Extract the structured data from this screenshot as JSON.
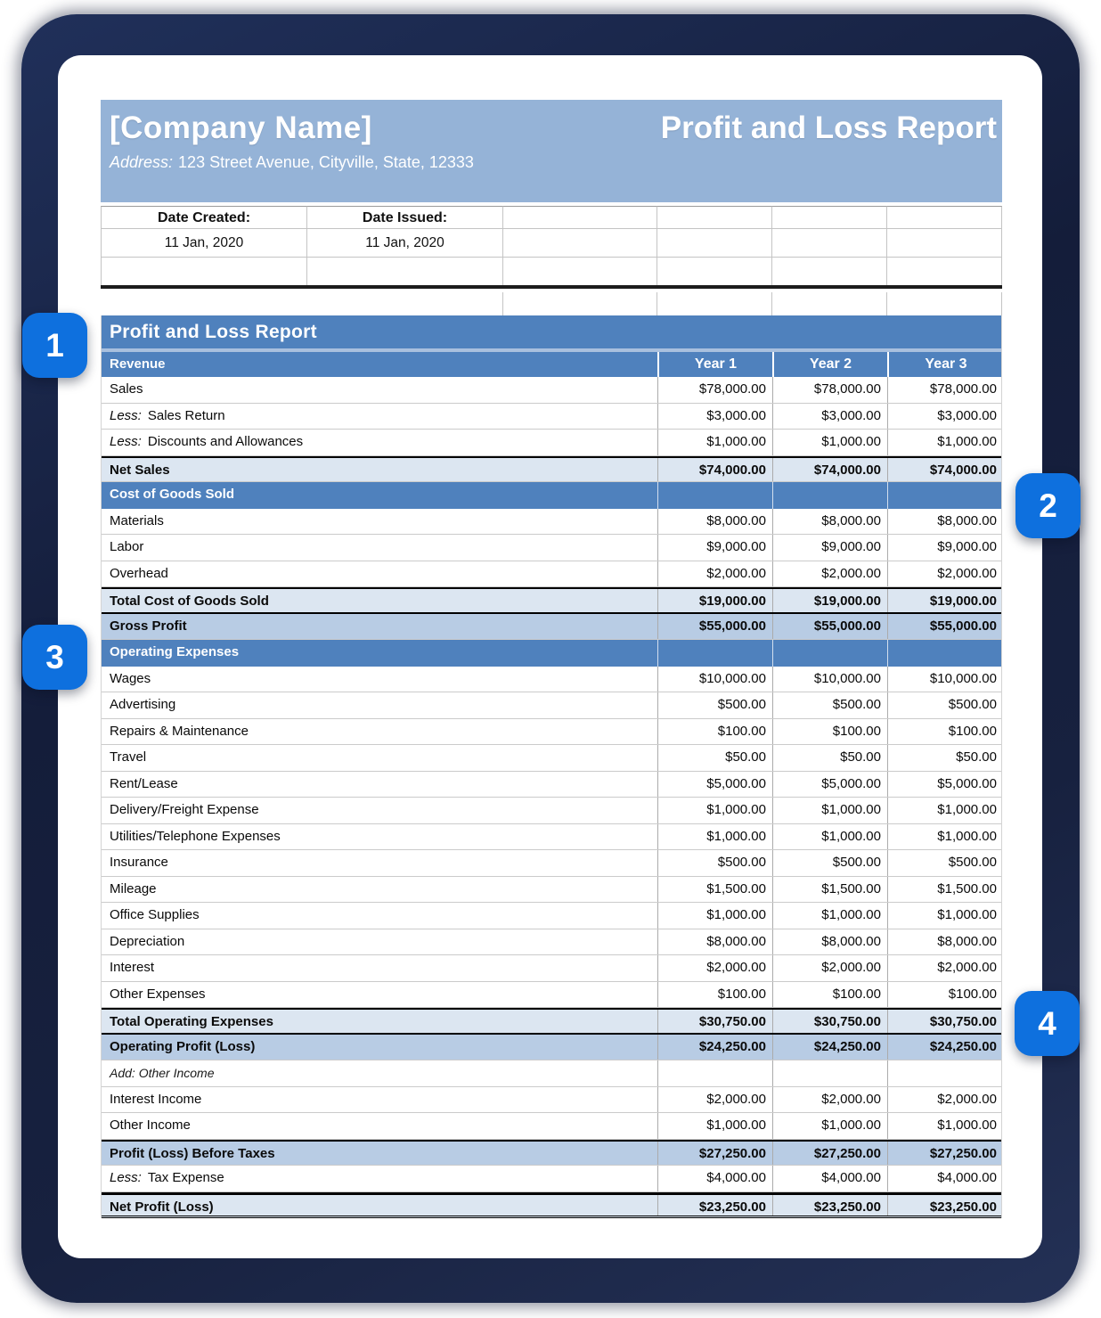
{
  "header": {
    "company_name": "[Company Name]",
    "report_title": "Profit and Loss Report",
    "address_label": "Address:",
    "address_value": "123 Street Avenue, Cityville, State, 12333"
  },
  "dates": {
    "created_label": "Date Created:",
    "created_value": "11 Jan, 2020",
    "issued_label": "Date Issued:",
    "issued_value": "11 Jan, 2020"
  },
  "badges": [
    "1",
    "2",
    "3",
    "4"
  ],
  "table": {
    "title": "Profit and Loss Report",
    "header_label": "Revenue",
    "year_columns": [
      "Year 1",
      "Year 2",
      "Year 3"
    ],
    "rows": [
      {
        "type": "item",
        "label": "Sales",
        "values": [
          "$78,000.00",
          "$78,000.00",
          "$78,000.00"
        ]
      },
      {
        "type": "item",
        "prefix": "Less:",
        "label": "Sales Return",
        "values": [
          "$3,000.00",
          "$3,000.00",
          "$3,000.00"
        ]
      },
      {
        "type": "item",
        "prefix": "Less:",
        "label": "Discounts and Allowances",
        "values": [
          "$1,000.00",
          "$1,000.00",
          "$1,000.00"
        ]
      },
      {
        "type": "total",
        "label": "Net Sales",
        "values": [
          "$74,000.00",
          "$74,000.00",
          "$74,000.00"
        ]
      },
      {
        "type": "section",
        "label": "Cost of Goods Sold",
        "values": [
          "",
          "",
          ""
        ]
      },
      {
        "type": "item",
        "label": "Materials",
        "values": [
          "$8,000.00",
          "$8,000.00",
          "$8,000.00"
        ]
      },
      {
        "type": "item",
        "label": "Labor",
        "values": [
          "$9,000.00",
          "$9,000.00",
          "$9,000.00"
        ]
      },
      {
        "type": "item",
        "label": "Overhead",
        "values": [
          "$2,000.00",
          "$2,000.00",
          "$2,000.00"
        ]
      },
      {
        "type": "total2",
        "label": "Total Cost of Goods Sold",
        "values": [
          "$19,000.00",
          "$19,000.00",
          "$19,000.00"
        ]
      },
      {
        "type": "profit",
        "label": "Gross Profit",
        "values": [
          "$55,000.00",
          "$55,000.00",
          "$55,000.00"
        ]
      },
      {
        "type": "section",
        "label": "Operating Expenses",
        "values": [
          "",
          "",
          ""
        ]
      },
      {
        "type": "item",
        "label": "Wages",
        "values": [
          "$10,000.00",
          "$10,000.00",
          "$10,000.00"
        ]
      },
      {
        "type": "item",
        "label": "Advertising",
        "values": [
          "$500.00",
          "$500.00",
          "$500.00"
        ]
      },
      {
        "type": "item",
        "label": "Repairs & Maintenance",
        "values": [
          "$100.00",
          "$100.00",
          "$100.00"
        ]
      },
      {
        "type": "item",
        "label": "Travel",
        "values": [
          "$50.00",
          "$50.00",
          "$50.00"
        ]
      },
      {
        "type": "item",
        "label": "Rent/Lease",
        "values": [
          "$5,000.00",
          "$5,000.00",
          "$5,000.00"
        ]
      },
      {
        "type": "item",
        "label": "Delivery/Freight Expense",
        "values": [
          "$1,000.00",
          "$1,000.00",
          "$1,000.00"
        ]
      },
      {
        "type": "item",
        "label": "Utilities/Telephone Expenses",
        "values": [
          "$1,000.00",
          "$1,000.00",
          "$1,000.00"
        ]
      },
      {
        "type": "item",
        "label": "Insurance",
        "values": [
          "$500.00",
          "$500.00",
          "$500.00"
        ]
      },
      {
        "type": "item",
        "label": "Mileage",
        "values": [
          "$1,500.00",
          "$1,500.00",
          "$1,500.00"
        ]
      },
      {
        "type": "item",
        "label": "Office Supplies",
        "values": [
          "$1,000.00",
          "$1,000.00",
          "$1,000.00"
        ]
      },
      {
        "type": "item",
        "label": "Depreciation",
        "values": [
          "$8,000.00",
          "$8,000.00",
          "$8,000.00"
        ]
      },
      {
        "type": "item",
        "label": "Interest",
        "values": [
          "$2,000.00",
          "$2,000.00",
          "$2,000.00"
        ]
      },
      {
        "type": "item",
        "label": "Other Expenses",
        "values": [
          "$100.00",
          "$100.00",
          "$100.00"
        ]
      },
      {
        "type": "total2",
        "label": "Total Operating Expenses",
        "values": [
          "$30,750.00",
          "$30,750.00",
          "$30,750.00"
        ]
      },
      {
        "type": "profit",
        "label": "Operating Profit (Loss)",
        "values": [
          "$24,250.00",
          "$24,250.00",
          "$24,250.00"
        ]
      },
      {
        "type": "note",
        "label": "Add: Other Income",
        "values": [
          "",
          "",
          ""
        ]
      },
      {
        "type": "item",
        "label": "Interest Income",
        "values": [
          "$2,000.00",
          "$2,000.00",
          "$2,000.00"
        ]
      },
      {
        "type": "item",
        "label": "Other Income",
        "values": [
          "$1,000.00",
          "$1,000.00",
          "$1,000.00"
        ]
      },
      {
        "type": "profit-top",
        "label": "Profit (Loss) Before Taxes",
        "values": [
          "$27,250.00",
          "$27,250.00",
          "$27,250.00"
        ]
      },
      {
        "type": "item",
        "prefix": "Less:",
        "label": "Tax Expense",
        "values": [
          "$4,000.00",
          "$4,000.00",
          "$4,000.00"
        ]
      },
      {
        "type": "grand",
        "label": "Net Profit (Loss)",
        "values": [
          "$23,250.00",
          "$23,250.00",
          "$23,250.00"
        ]
      }
    ]
  },
  "colors": {
    "header_band": "#95b3d7",
    "section_header": "#4f81bd",
    "subtotal_row": "#dce6f1",
    "profit_row": "#b8cce4",
    "badge": "#0e70de",
    "backdrop": "#16203f"
  }
}
